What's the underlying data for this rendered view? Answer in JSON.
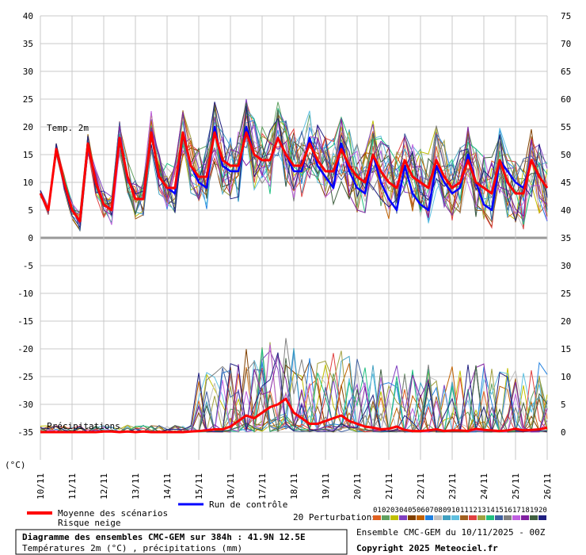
{
  "chart_data": {
    "type": "line",
    "title": "Diagramme des ensembles CMC-GEM sur 384h : 41.9N 12.5E",
    "subtitle": "Températures 2m (°C) , précipitations (mm)",
    "run_info": "Ensemble CMC-GEM du 10/11/2025 - 00Z",
    "copyright": "Copyright 2025 Meteociel.fr",
    "unit_label": "(°C)",
    "panel_temp_label": "Temp. 2m",
    "panel_precip_label": "Précipitations",
    "x_dates": [
      "10/11",
      "11/11",
      "12/11",
      "13/11",
      "14/11",
      "15/11",
      "16/11",
      "17/11",
      "18/11",
      "19/11",
      "20/11",
      "21/11",
      "22/11",
      "23/11",
      "24/11",
      "25/11",
      "26/11"
    ],
    "y_left": {
      "ticks": [
        40,
        35,
        30,
        25,
        20,
        15,
        10,
        5,
        0,
        -5,
        -10,
        -15,
        -20,
        -25,
        -30,
        -35
      ],
      "range": [
        -40,
        40
      ]
    },
    "y_right": {
      "ticks": [
        75,
        70,
        65,
        60,
        55,
        50,
        45,
        40,
        35,
        30,
        25,
        20,
        15,
        10,
        5,
        0
      ],
      "range": [
        -5,
        75
      ]
    },
    "grid": true,
    "legend": {
      "mean": "Moyenne des scénarios",
      "snow": "Risque neige",
      "control": "Run de contrôle",
      "perturbations": "20 Perturbations",
      "perturbation_ids": [
        "01",
        "02",
        "03",
        "04",
        "05",
        "06",
        "07",
        "08",
        "09",
        "10",
        "11",
        "12",
        "13",
        "14",
        "15",
        "16",
        "17",
        "18",
        "19",
        "20"
      ],
      "perturbation_colors": [
        "#e06020",
        "#60a060",
        "#c0c000",
        "#8040c0",
        "#804000",
        "#c06000",
        "#2080e0",
        "#c0c0c0",
        "#40a0c0",
        "#60c0e0",
        "#a06020",
        "#e04040",
        "#a0a040",
        "#20c080",
        "#4060a0",
        "#808080",
        "#c060e0",
        "#8020a0",
        "#406040",
        "#202080"
      ],
      "mean_color": "#ff0000",
      "control_color": "#0000ff"
    },
    "step_hours": 6,
    "series_temp_mean": [
      8,
      5,
      16,
      10,
      5,
      3,
      17,
      10,
      6,
      5,
      18,
      11,
      7,
      7,
      19,
      11,
      9,
      9,
      19,
      13,
      11,
      11,
      19,
      14,
      13,
      13,
      19,
      15,
      14,
      14,
      18,
      15,
      13,
      13,
      17,
      14,
      12,
      12,
      16,
      13,
      11,
      10,
      15,
      12,
      10,
      9,
      14,
      11,
      10,
      9,
      14,
      11,
      9,
      10,
      14,
      10,
      9,
      8,
      14,
      10,
      8,
      8,
      14,
      11,
      9
    ],
    "series_temp_control": [
      8,
      5,
      16,
      10,
      5,
      3,
      17,
      10,
      6,
      5,
      18,
      11,
      7,
      7,
      19,
      11,
      9,
      8,
      19,
      13,
      10,
      9,
      20,
      13,
      12,
      12,
      20,
      15,
      14,
      14,
      18,
      15,
      12,
      12,
      18,
      13,
      11,
      9,
      17,
      12,
      9,
      8,
      15,
      10,
      7,
      5,
      13,
      8,
      6,
      5,
      13,
      10,
      8,
      9,
      15,
      10,
      6,
      5,
      14,
      12,
      10,
      9,
      14,
      11,
      9
    ],
    "series_precip_mean": [
      0,
      0,
      0,
      0,
      0,
      0,
      0,
      0,
      0.1,
      0.1,
      0,
      0.1,
      0,
      0.1,
      0,
      0,
      0,
      0,
      0,
      0.1,
      0.2,
      0.3,
      0.5,
      0.5,
      1,
      2,
      3,
      2.5,
      3.5,
      4.5,
      5,
      6,
      3.5,
      2.5,
      1.5,
      1.5,
      2,
      2.5,
      3,
      2,
      1.5,
      1,
      0.8,
      0.5,
      0.6,
      1,
      0.4,
      0.2,
      0.2,
      0.3,
      0.5,
      0.2,
      0.3,
      0.3,
      0.2,
      0.6,
      0.4,
      0.3,
      0.2,
      0.3,
      0.6,
      0.3,
      0.4,
      0.5,
      0.8
    ]
  }
}
